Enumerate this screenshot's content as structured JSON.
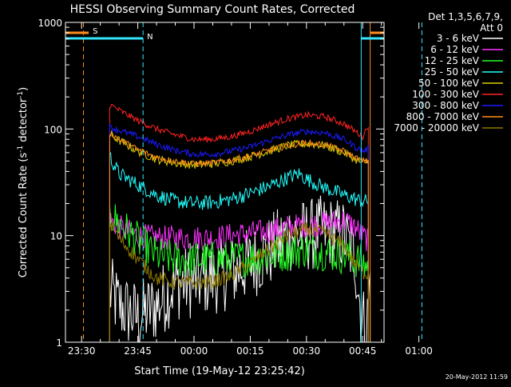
{
  "chart_data": {
    "type": "line",
    "title": "HESSI Observing Summary Count Rates, Corrected",
    "xlabel": "Start Time (19-May-12 23:25:42)",
    "ylabel_main": "Corrected Count Rate (s",
    "ylabel_sup1": "-1",
    "ylabel_mid": " detector",
    "ylabel_sup2": "-1",
    "ylabel_end": ")",
    "y_scale": "log",
    "ylim": [
      1,
      1000
    ],
    "xlim_min": [
      -4.3,
      80.7
    ],
    "y_ticks": [
      {
        "v": 1,
        "label": "1"
      },
      {
        "v": 10,
        "label": "10"
      },
      {
        "v": 100,
        "label": "100"
      },
      {
        "v": 1000,
        "label": "1000"
      }
    ],
    "x_ticks": [
      {
        "v": 0,
        "label": "23:30"
      },
      {
        "v": 15,
        "label": "23:45"
      },
      {
        "v": 30,
        "label": "00:00"
      },
      {
        "v": 45,
        "label": "00:15"
      },
      {
        "v": 60,
        "label": "00:30"
      },
      {
        "v": 75,
        "label": "00:45"
      },
      {
        "v": 90,
        "label": "01:00"
      }
    ],
    "legend_title_1": "Det 1,3,5,6,7,9,",
    "legend_title_2": "Att 0",
    "date_stamp": "20-May-2012 11:59",
    "flags": [
      {
        "label": "S",
        "color": "#ff8c1a",
        "start": -6,
        "end": 1.9
      },
      {
        "label": "N",
        "color": "#33e6ff",
        "start": -6,
        "end": 16.4
      }
    ],
    "markers": [
      {
        "color": "#ff8c1a",
        "x": 0.5,
        "dash": true
      },
      {
        "color": "#33e6ff",
        "x": 16.4,
        "dash": true
      },
      {
        "color": "#33e6ff",
        "x": 74.6,
        "dash": false
      },
      {
        "color": "#ff8c1a",
        "x": 77.0,
        "dash": false
      },
      {
        "color": "#33e6ff",
        "x": 90.8,
        "dash": true
      }
    ],
    "flags_right": [
      {
        "color": "#ff8c1a",
        "start": 77.0,
        "end": 92
      },
      {
        "color": "#33e6ff",
        "start": 74.6,
        "end": 92
      }
    ],
    "series": [
      {
        "name": "3 - 6 keV",
        "color": "#ffffff",
        "noise": 0.35,
        "points": [
          [
            7.5,
            3
          ],
          [
            10,
            2.2
          ],
          [
            15,
            1.7
          ],
          [
            20,
            2.2
          ],
          [
            25,
            3.5
          ],
          [
            30,
            3.7
          ],
          [
            35,
            4
          ],
          [
            40,
            4.5
          ],
          [
            45,
            5.5
          ],
          [
            50,
            7
          ],
          [
            55,
            10
          ],
          [
            60,
            10
          ],
          [
            65,
            11
          ],
          [
            70,
            10
          ],
          [
            73,
            6
          ],
          [
            74.5,
            2
          ],
          [
            76,
            1.2
          ],
          [
            77,
            4
          ]
        ]
      },
      {
        "name": "6 - 12 keV",
        "color": "#ff33ff",
        "noise": 0.12,
        "points": [
          [
            7.5,
            14
          ],
          [
            10,
            12
          ],
          [
            15,
            10
          ],
          [
            20,
            9.5
          ],
          [
            25,
            9.5
          ],
          [
            30,
            9.5
          ],
          [
            35,
            9.5
          ],
          [
            40,
            10
          ],
          [
            45,
            10.5
          ],
          [
            50,
            11
          ],
          [
            55,
            12
          ],
          [
            60,
            12.5
          ],
          [
            65,
            13
          ],
          [
            70,
            14
          ],
          [
            73,
            12
          ],
          [
            75,
            10
          ],
          [
            76.5,
            9
          ]
        ]
      },
      {
        "name": "12 - 25 keV",
        "color": "#22ff22",
        "noise": 0.18,
        "points": [
          [
            7.5,
            16
          ],
          [
            10,
            13
          ],
          [
            15,
            9
          ],
          [
            20,
            6.5
          ],
          [
            25,
            6
          ],
          [
            30,
            6
          ],
          [
            35,
            6
          ],
          [
            40,
            6
          ],
          [
            45,
            6.2
          ],
          [
            50,
            6.5
          ],
          [
            55,
            7
          ],
          [
            60,
            7.5
          ],
          [
            65,
            7
          ],
          [
            70,
            6.5
          ],
          [
            73,
            6
          ],
          [
            75,
            5.5
          ],
          [
            76.5,
            5
          ]
        ]
      },
      {
        "name": "25 - 50 keV",
        "color": "#22ffff",
        "noise": 0.07,
        "points": [
          [
            7.5,
            55
          ],
          [
            10,
            38
          ],
          [
            15,
            30
          ],
          [
            20,
            24
          ],
          [
            25,
            21
          ],
          [
            30,
            20
          ],
          [
            35,
            20.5
          ],
          [
            40,
            22
          ],
          [
            45,
            25
          ],
          [
            50,
            29
          ],
          [
            55,
            35
          ],
          [
            58,
            38
          ],
          [
            60,
            34
          ],
          [
            65,
            28
          ],
          [
            70,
            24
          ],
          [
            73,
            22
          ],
          [
            75,
            21
          ],
          [
            76.5,
            21
          ]
        ]
      },
      {
        "name": "50 - 100 keV",
        "color": "#ddd000",
        "noise": 0.04,
        "points": [
          [
            7.5,
            90
          ],
          [
            10,
            78
          ],
          [
            15,
            62
          ],
          [
            20,
            52
          ],
          [
            25,
            48
          ],
          [
            30,
            46
          ],
          [
            35,
            47
          ],
          [
            40,
            50
          ],
          [
            45,
            55
          ],
          [
            50,
            62
          ],
          [
            55,
            70
          ],
          [
            60,
            73
          ],
          [
            65,
            70
          ],
          [
            70,
            60
          ],
          [
            73,
            52
          ],
          [
            75,
            48
          ],
          [
            76.5,
            50
          ]
        ]
      },
      {
        "name": "100 - 300 keV",
        "color": "#ff2222",
        "noise": 0.03,
        "points": [
          [
            7.5,
            170
          ],
          [
            10,
            150
          ],
          [
            15,
            120
          ],
          [
            20,
            100
          ],
          [
            25,
            88
          ],
          [
            30,
            80
          ],
          [
            35,
            80
          ],
          [
            40,
            85
          ],
          [
            45,
            95
          ],
          [
            50,
            110
          ],
          [
            55,
            125
          ],
          [
            60,
            135
          ],
          [
            65,
            130
          ],
          [
            70,
            112
          ],
          [
            73,
            95
          ],
          [
            75,
            85
          ],
          [
            76.5,
            110
          ]
        ]
      },
      {
        "name": "300 - 800 keV",
        "color": "#1a1aff",
        "noise": 0.03,
        "points": [
          [
            7.5,
            105
          ],
          [
            10,
            97
          ],
          [
            15,
            85
          ],
          [
            20,
            72
          ],
          [
            25,
            63
          ],
          [
            30,
            58
          ],
          [
            35,
            58
          ],
          [
            40,
            62
          ],
          [
            45,
            68
          ],
          [
            50,
            78
          ],
          [
            55,
            88
          ],
          [
            60,
            95
          ],
          [
            65,
            92
          ],
          [
            70,
            80
          ],
          [
            73,
            68
          ],
          [
            75,
            62
          ],
          [
            76.5,
            65
          ]
        ]
      },
      {
        "name": "800 - 7000 keV",
        "color": "#ff8c1a",
        "noise": 0.03,
        "points": [
          [
            7.5,
            92
          ],
          [
            10,
            80
          ],
          [
            15,
            64
          ],
          [
            20,
            54
          ],
          [
            25,
            50
          ],
          [
            30,
            47
          ],
          [
            35,
            48
          ],
          [
            40,
            51
          ],
          [
            45,
            56
          ],
          [
            50,
            63
          ],
          [
            55,
            70
          ],
          [
            60,
            74
          ],
          [
            65,
            71
          ],
          [
            70,
            62
          ],
          [
            73,
            54
          ],
          [
            75,
            50
          ],
          [
            76.5,
            50
          ]
        ]
      },
      {
        "name": "7000 - 20000 keV",
        "color": "#8c7a00",
        "noise": 0.07,
        "points": [
          [
            7.5,
            13
          ],
          [
            10,
            9.5
          ],
          [
            15,
            6
          ],
          [
            20,
            4
          ],
          [
            25,
            3.6
          ],
          [
            30,
            3.6
          ],
          [
            35,
            3.7
          ],
          [
            40,
            4.2
          ],
          [
            45,
            5.5
          ],
          [
            50,
            7.5
          ],
          [
            55,
            10
          ],
          [
            60,
            11.5
          ],
          [
            65,
            10.5
          ],
          [
            70,
            8
          ],
          [
            73,
            5.5
          ],
          [
            75,
            4.5
          ],
          [
            76.5,
            4.5
          ]
        ]
      }
    ]
  }
}
